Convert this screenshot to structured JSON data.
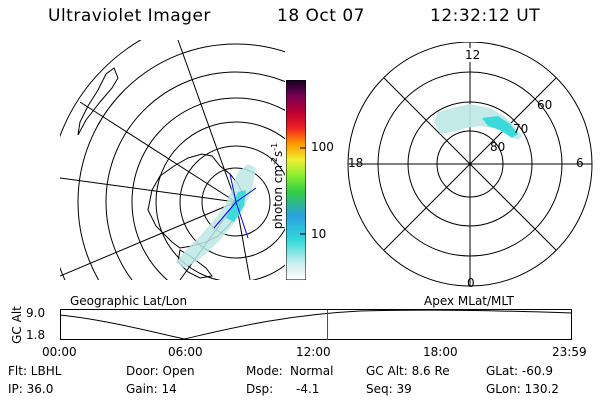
{
  "header": {
    "instrument": "Ultraviolet Imager",
    "date": "18 Oct 07",
    "time": "12:32:12 UT"
  },
  "colorbar": {
    "unit_label": "photon cm",
    "unit_exp1": "-2",
    "unit_mid": "s",
    "unit_exp2": "-1",
    "tick_100": "100",
    "tick_10": "10"
  },
  "geo_panel": {
    "label": "Geographic Lat/Lon"
  },
  "apex_panel": {
    "label": "Apex MLat/MLT",
    "mlt_12": "12",
    "mlt_18": "18",
    "mlt_6": "6",
    "mlt_0": "0",
    "lat_60": "60",
    "lat_70": "70",
    "lat_80": "80"
  },
  "altitude_plot": {
    "ylabel": "GC Alt",
    "y_top": "9.0",
    "y_bottom": "1.8",
    "x_ticks": [
      "00:00",
      "06:00",
      "12:00",
      "18:00",
      "23:59"
    ],
    "current_time_hours": 12.54
  },
  "footer": {
    "filter": "Flt: LBHL",
    "door": "Door: Open",
    "mode_label": "Mode:",
    "mode_value": "Normal",
    "gc_alt": "GC Alt: 8.6 Re",
    "glat": "GLat: -60.9",
    "ip": "IP: 36.0",
    "gain": "Gain: 14",
    "dsp_label": "Dsp:",
    "dsp_value": "-4.1",
    "seq": "Seq: 39",
    "glon": "GLon: 130.2"
  },
  "colors": {
    "aurora_cyan": "#33d9d9",
    "aurora_faint": "#bde8e4",
    "orbit_marker": "#ff0000",
    "magnetic_pole": "#0000ff"
  }
}
